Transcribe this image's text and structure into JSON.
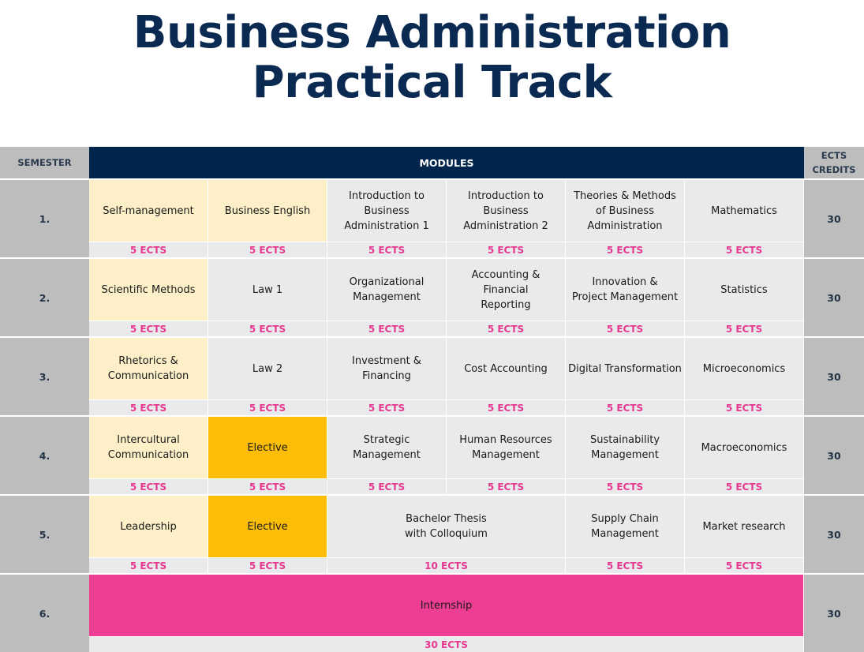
{
  "title": {
    "line1": "Business Administration",
    "line2": "Practical Track"
  },
  "header": {
    "semester": "SEMESTER",
    "modules": "MODULES",
    "credits": "ECTS\nCREDITS"
  },
  "colors": {
    "navy": "#00264d",
    "title": "#0a2a52",
    "yellow_module": "#fdf0c9",
    "elective": "#fbbd08",
    "internship": "#ee3e94",
    "ects_text": "#e6388f",
    "grey_module": "#e9eaec",
    "side_grey": "#bdbdbd"
  },
  "semesters": [
    {
      "label": "1.",
      "credits": "30",
      "modules": [
        {
          "name": "Self-management",
          "ects": "5 ECTS",
          "span": 1,
          "style": "yellow"
        },
        {
          "name": "Business English",
          "ects": "5 ECTS",
          "span": 1,
          "style": "yellow"
        },
        {
          "name": "Introduction to\nBusiness\nAdministration 1",
          "ects": "5 ECTS",
          "span": 1,
          "style": "grey"
        },
        {
          "name": "Introduction to\nBusiness\nAdministration 2",
          "ects": "5 ECTS",
          "span": 1,
          "style": "grey"
        },
        {
          "name": "Theories & Methods\nof Business\nAdministration",
          "ects": "5 ECTS",
          "span": 1,
          "style": "grey"
        },
        {
          "name": "Mathematics",
          "ects": "5 ECTS",
          "span": 1,
          "style": "grey"
        }
      ]
    },
    {
      "label": "2.",
      "credits": "30",
      "modules": [
        {
          "name": "Scientific Methods",
          "ects": "5 ECTS",
          "span": 1,
          "style": "yellow"
        },
        {
          "name": "Law 1",
          "ects": "5 ECTS",
          "span": 1,
          "style": "grey"
        },
        {
          "name": "Organizational\nManagement",
          "ects": "5 ECTS",
          "span": 1,
          "style": "grey"
        },
        {
          "name": "Accounting & Financial\nReporting",
          "ects": "5 ECTS",
          "span": 1,
          "style": "grey"
        },
        {
          "name": "Innovation &\nProject Management",
          "ects": "5 ECTS",
          "span": 1,
          "style": "grey"
        },
        {
          "name": "Statistics",
          "ects": "5 ECTS",
          "span": 1,
          "style": "grey"
        }
      ]
    },
    {
      "label": "3.",
      "credits": "30",
      "modules": [
        {
          "name": "Rhetorics &\nCommunication",
          "ects": "5 ECTS",
          "span": 1,
          "style": "yellow"
        },
        {
          "name": "Law 2",
          "ects": "5 ECTS",
          "span": 1,
          "style": "grey"
        },
        {
          "name": "Investment & Financing",
          "ects": "5 ECTS",
          "span": 1,
          "style": "grey"
        },
        {
          "name": "Cost Accounting",
          "ects": "5 ECTS",
          "span": 1,
          "style": "grey"
        },
        {
          "name": "Digital Transformation",
          "ects": "5 ECTS",
          "span": 1,
          "style": "grey"
        },
        {
          "name": "Microeconomics",
          "ects": "5 ECTS",
          "span": 1,
          "style": "grey"
        }
      ]
    },
    {
      "label": "4.",
      "credits": "30",
      "modules": [
        {
          "name": "Intercultural\nCommunication",
          "ects": "5 ECTS",
          "span": 1,
          "style": "yellow"
        },
        {
          "name": "Elective",
          "ects": "5 ECTS",
          "span": 1,
          "style": "gold"
        },
        {
          "name": "Strategic\nManagement",
          "ects": "5 ECTS",
          "span": 1,
          "style": "grey"
        },
        {
          "name": "Human Resources\nManagement",
          "ects": "5 ECTS",
          "span": 1,
          "style": "grey"
        },
        {
          "name": "Sustainability\nManagement",
          "ects": "5 ECTS",
          "span": 1,
          "style": "grey"
        },
        {
          "name": "Macroeconomics",
          "ects": "5 ECTS",
          "span": 1,
          "style": "grey"
        }
      ]
    },
    {
      "label": "5.",
      "credits": "30",
      "modules": [
        {
          "name": "Leadership",
          "ects": "5 ECTS",
          "span": 1,
          "style": "yellow"
        },
        {
          "name": "Elective",
          "ects": "5 ECTS",
          "span": 1,
          "style": "gold"
        },
        {
          "name": "Bachelor Thesis\nwith Colloquium",
          "ects": "10 ECTS",
          "span": 2,
          "style": "grey"
        },
        {
          "name": "Supply Chain\nManagement",
          "ects": "5 ECTS",
          "span": 1,
          "style": "grey"
        },
        {
          "name": "Market research",
          "ects": "5 ECTS",
          "span": 1,
          "style": "grey"
        }
      ]
    },
    {
      "label": "6.",
      "credits": "30",
      "modules": [
        {
          "name": "Internship",
          "ects": "30 ECTS",
          "span": 6,
          "style": "pink"
        }
      ]
    }
  ]
}
